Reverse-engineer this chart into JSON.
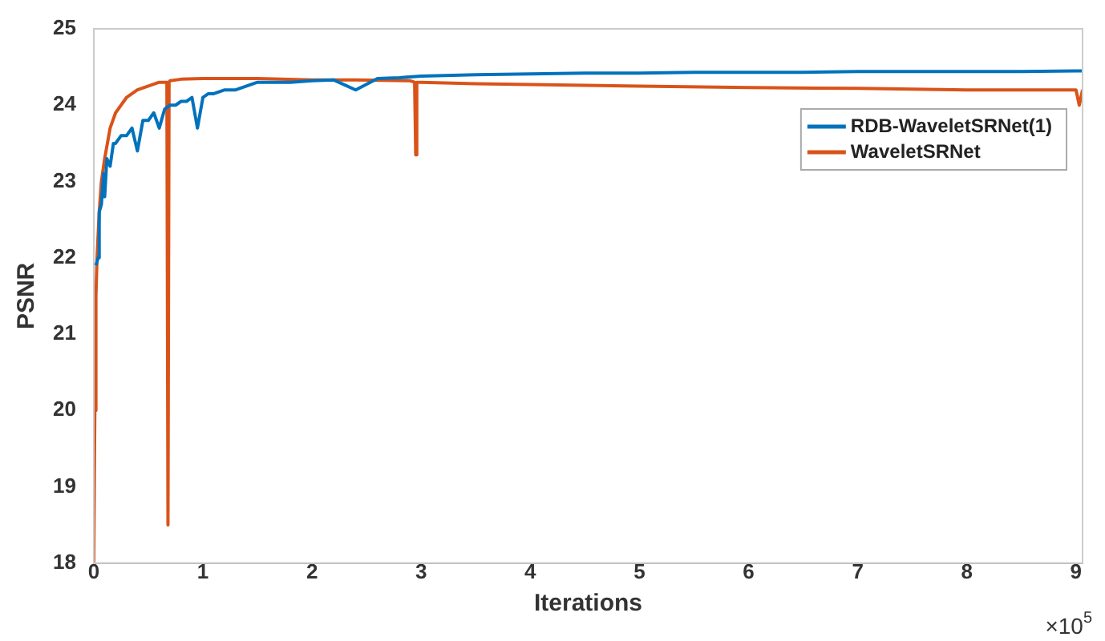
{
  "chart_data": {
    "type": "line",
    "xlabel": "Iterations",
    "ylabel": "PSNR",
    "annotations": [
      "×10$^{5}$"
    ],
    "xlim": [
      0,
      9.06
    ],
    "xticks": [
      0,
      1,
      2,
      3,
      4,
      5,
      6,
      7,
      8,
      9
    ],
    "ylim": [
      18,
      25
    ],
    "yticks": [
      18,
      19,
      20,
      21,
      22,
      23,
      24,
      25
    ],
    "grid": false,
    "legend": "top right",
    "marker": "none",
    "line_style": "solid",
    "series": [
      {
        "name": "RDB-WaveletSRNet(1)",
        "color": "#0072bd",
        "x": [
          0.02,
          0.04,
          0.05,
          0.07,
          0.09,
          0.1,
          0.12,
          0.15,
          0.18,
          0.2,
          0.25,
          0.3,
          0.35,
          0.4,
          0.45,
          0.5,
          0.55,
          0.6,
          0.65,
          0.7,
          0.75,
          0.8,
          0.85,
          0.9,
          0.95,
          1.0,
          1.05,
          1.1,
          1.2,
          1.3,
          1.4,
          1.5,
          1.6,
          1.8,
          2.0,
          2.2,
          2.4,
          2.6,
          2.8,
          3.0,
          3.5,
          4.0,
          4.5,
          5.0,
          5.5,
          6.0,
          6.5,
          7.0,
          7.5,
          8.0,
          8.5,
          9.0,
          9.06
        ],
        "values": [
          21.9,
          22.0,
          22.6,
          22.7,
          23.1,
          22.8,
          23.3,
          23.2,
          23.5,
          23.5,
          23.6,
          23.6,
          23.7,
          23.4,
          23.8,
          23.8,
          23.9,
          23.7,
          23.95,
          24.0,
          24.0,
          24.05,
          24.05,
          24.1,
          23.7,
          24.1,
          24.15,
          24.15,
          24.2,
          24.2,
          24.25,
          24.3,
          24.3,
          24.3,
          24.32,
          24.33,
          24.2,
          24.35,
          24.36,
          24.38,
          24.4,
          24.41,
          24.42,
          24.42,
          24.43,
          24.43,
          24.43,
          24.44,
          24.44,
          24.44,
          24.44,
          24.45,
          24.45
        ]
      },
      {
        "name": "WaveletSRNet",
        "color": "#d95319",
        "x": [
          0,
          0.01,
          0.02,
          0.03,
          0.05,
          0.07,
          0.1,
          0.15,
          0.2,
          0.25,
          0.3,
          0.4,
          0.5,
          0.6,
          0.67,
          0.68,
          0.69,
          0.7,
          0.8,
          1.0,
          1.5,
          2.0,
          2.4,
          2.9,
          2.94,
          2.95,
          2.96,
          3.0,
          3.5,
          4.0,
          5.0,
          6.0,
          7.0,
          8.0,
          9.0,
          9.03,
          9.06
        ],
        "values": [
          18.0,
          20.0,
          21.5,
          22.0,
          22.6,
          23.0,
          23.3,
          23.7,
          23.9,
          24.0,
          24.1,
          24.2,
          24.25,
          24.3,
          24.3,
          18.5,
          24.3,
          24.32,
          24.34,
          24.35,
          24.35,
          24.33,
          24.33,
          24.32,
          24.3,
          23.35,
          24.3,
          24.3,
          24.28,
          24.27,
          24.25,
          24.23,
          24.22,
          24.2,
          24.2,
          24.0,
          24.2
        ]
      }
    ]
  }
}
